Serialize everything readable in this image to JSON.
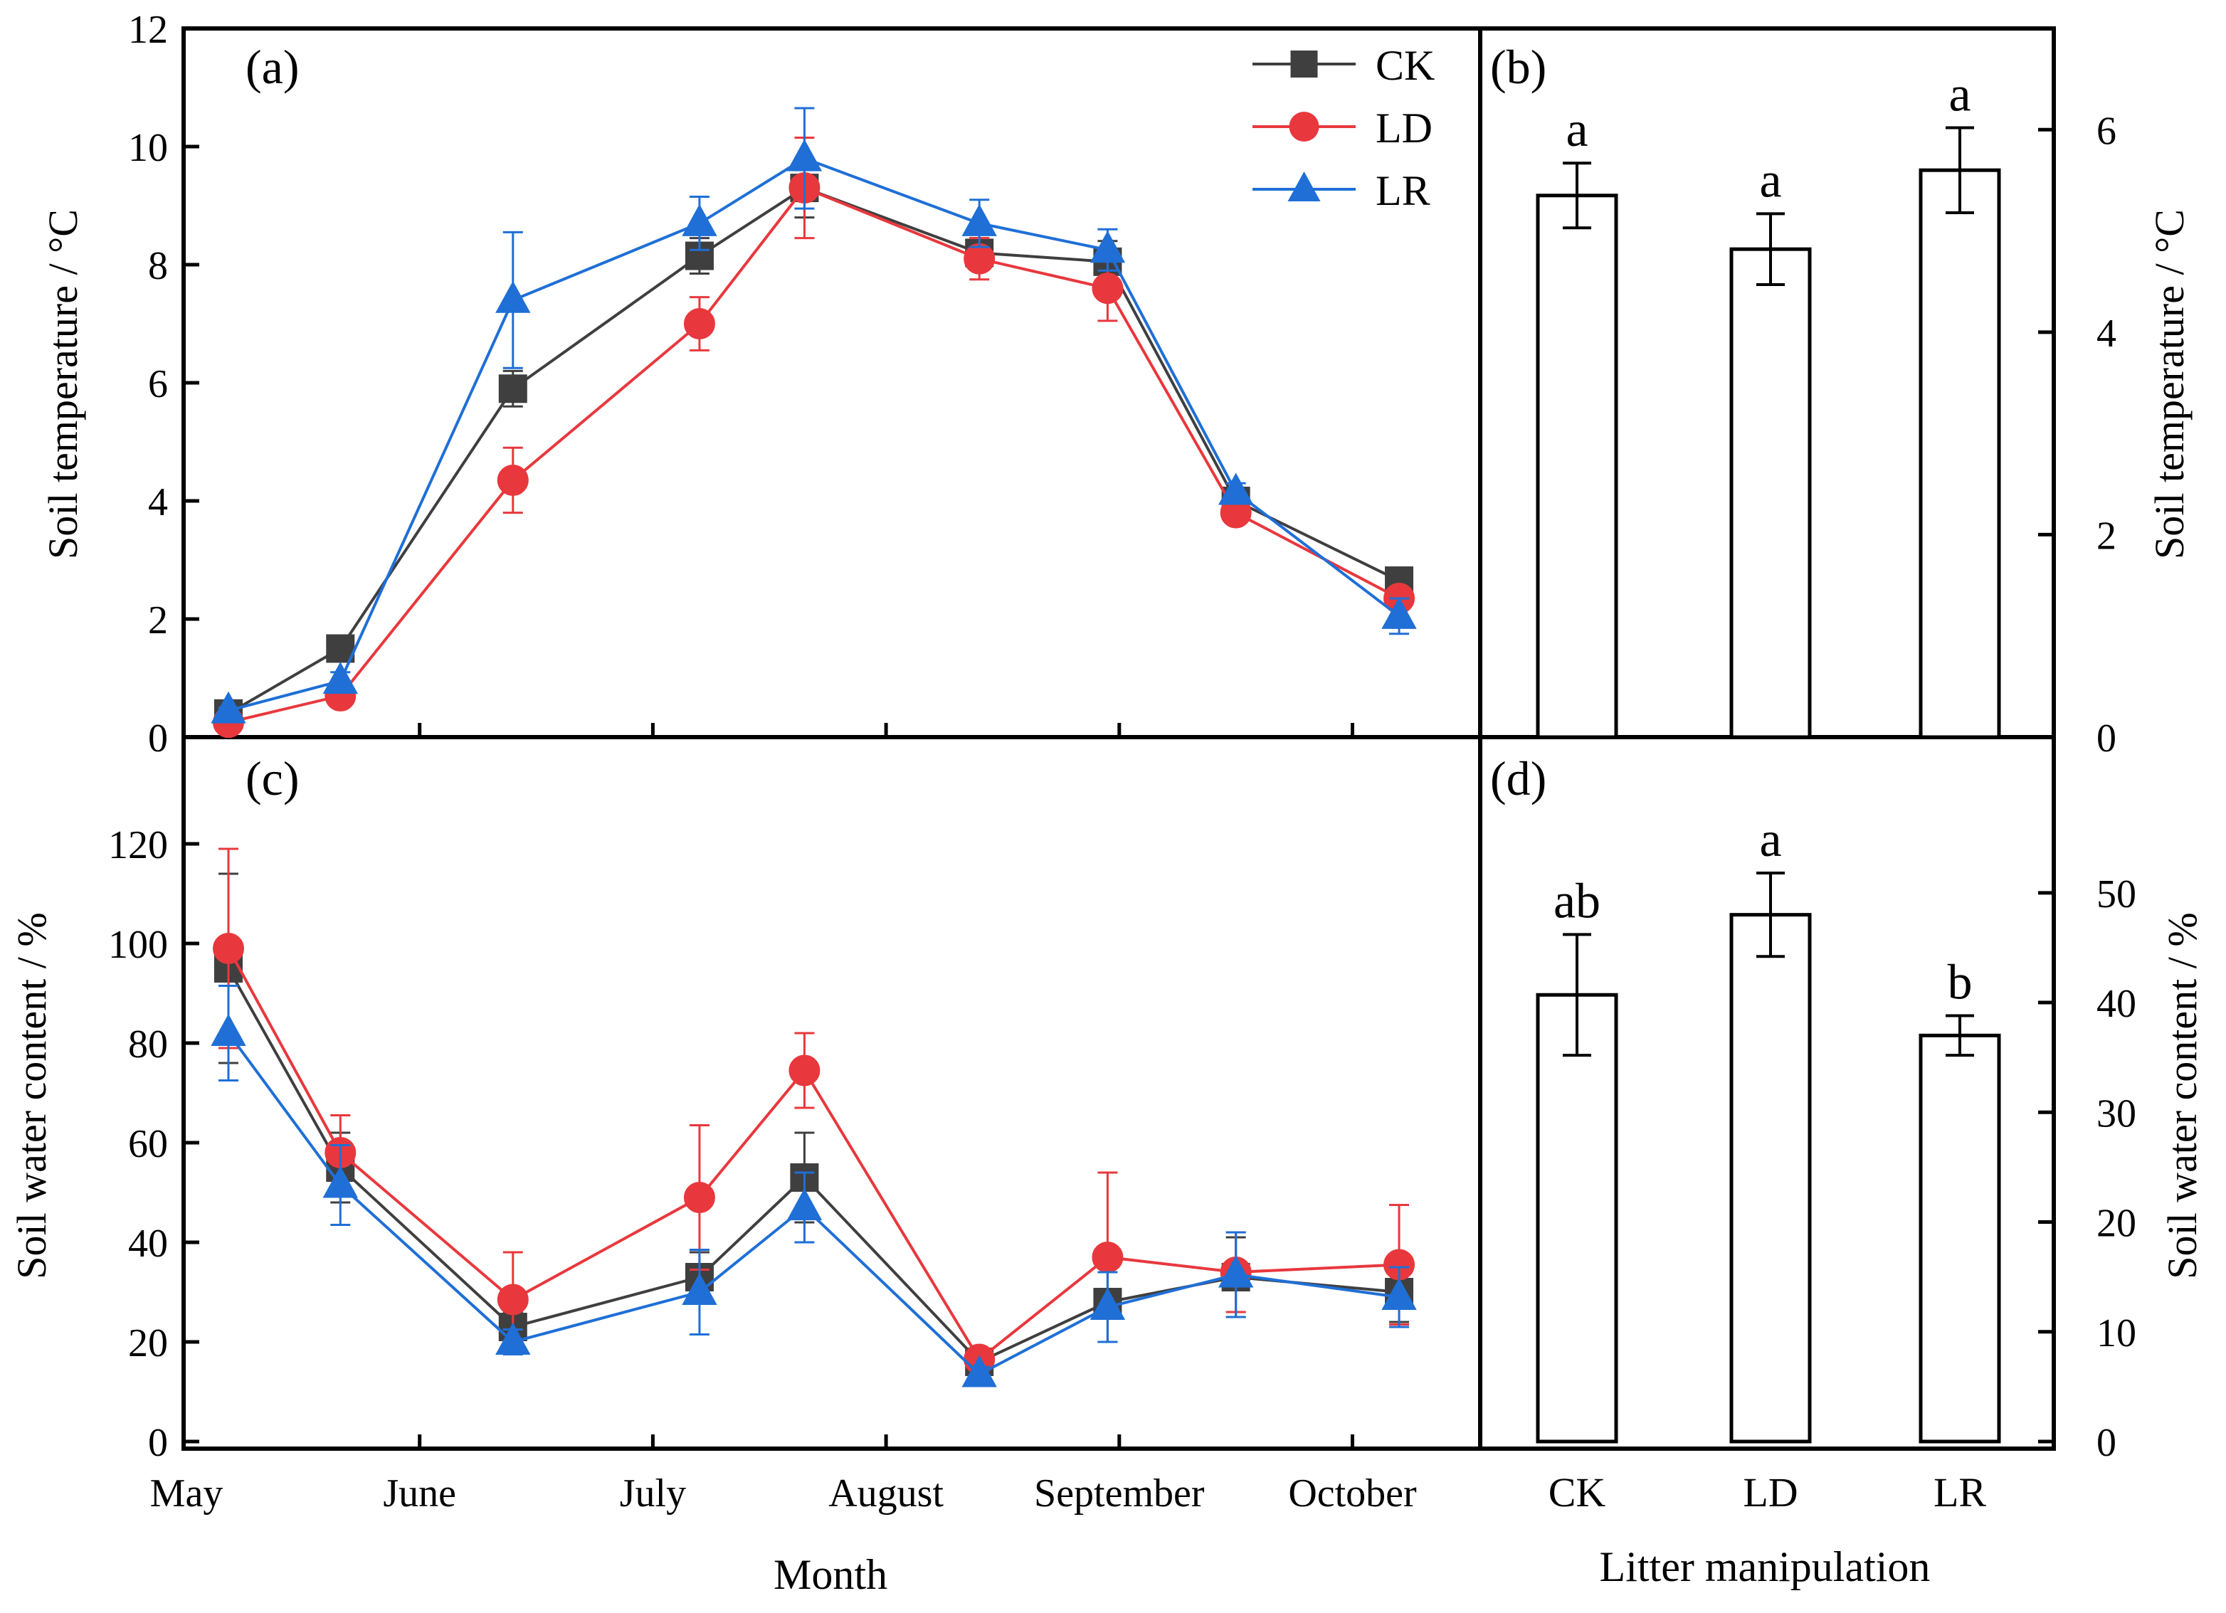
{
  "colors": {
    "CK": "#3f3f3f",
    "LD": "#e8383d",
    "LR": "#1f6fd6",
    "axis": "#000000",
    "bar_fill": "#ffffff"
  },
  "markers": {
    "CK": "square",
    "LD": "circle",
    "LR": "triangle"
  },
  "xlabel_time": "Month",
  "xlabel_bar": "Litter manipulation",
  "chart_data": [
    {
      "panel": "(a)",
      "type": "line",
      "xlabel": "Month",
      "ylabel": "Soil temperature / °C",
      "ylim": [
        0,
        12
      ],
      "yticks": [
        0,
        2,
        4,
        6,
        8,
        10,
        12
      ],
      "month_ticks": [
        "May",
        "June",
        "July",
        "August",
        "September",
        "October"
      ],
      "x_month_index": [
        0.18,
        0.66,
        1.4,
        2.2,
        2.65,
        3.4,
        3.95,
        4.5,
        5.2
      ],
      "legend": [
        "CK",
        "LD",
        "LR"
      ],
      "legend_position": "top-right",
      "series": [
        {
          "name": "CK",
          "values": [
            0.4,
            1.5,
            5.9,
            8.15,
            9.3,
            8.2,
            8.05,
            4.0,
            2.65
          ],
          "errors": [
            0.05,
            0.1,
            0.3,
            0.3,
            0.5,
            0.25,
            0.35,
            0.15,
            0.1
          ]
        },
        {
          "name": "LD",
          "values": [
            0.25,
            0.7,
            4.35,
            7.0,
            9.3,
            8.1,
            7.6,
            3.8,
            2.35
          ],
          "errors": [
            0.05,
            0.1,
            0.55,
            0.45,
            0.85,
            0.35,
            0.55,
            0.15,
            0.15
          ]
        },
        {
          "name": "LR",
          "values": [
            0.45,
            0.95,
            7.4,
            8.7,
            9.8,
            8.7,
            8.25,
            4.15,
            2.05
          ],
          "errors": [
            0.05,
            0.15,
            1.15,
            0.45,
            0.85,
            0.4,
            0.35,
            0.15,
            0.3
          ]
        }
      ]
    },
    {
      "panel": "(b)",
      "type": "bar",
      "ylabel": "Soil temperature / °C",
      "ylim": [
        0,
        7
      ],
      "yticks": [
        0,
        2,
        4,
        6
      ],
      "categories": [
        "CK",
        "LD",
        "LR"
      ],
      "values": [
        5.35,
        4.82,
        5.6
      ],
      "errors": [
        0.32,
        0.35,
        0.42
      ],
      "letters": [
        "a",
        "a",
        "a"
      ]
    },
    {
      "panel": "(c)",
      "type": "line",
      "xlabel": "Month",
      "ylabel": "Soil water content / %",
      "ylim": [
        0,
        130
      ],
      "yticks": [
        0,
        20,
        40,
        60,
        80,
        100,
        120
      ],
      "month_ticks": [
        "May",
        "June",
        "July",
        "August",
        "September",
        "October"
      ],
      "x_month_index": [
        0.18,
        0.66,
        1.4,
        2.2,
        2.65,
        3.4,
        3.95,
        4.5,
        5.2
      ],
      "series": [
        {
          "name": "CK",
          "values": [
            95,
            55,
            23,
            33,
            53,
            16,
            28,
            33,
            30
          ],
          "errors": [
            19,
            7,
            3,
            5,
            9,
            2,
            8,
            8,
            6
          ]
        },
        {
          "name": "LD",
          "values": [
            99,
            58,
            28.5,
            49,
            74.5,
            16.5,
            37,
            34,
            35.5
          ],
          "errors": [
            20,
            7.5,
            9.5,
            14.5,
            7.5,
            1.5,
            17,
            8,
            12
          ]
        },
        {
          "name": "LR",
          "values": [
            82,
            51.5,
            20,
            30,
            47,
            13.5,
            27,
            33.5,
            29
          ],
          "errors": [
            9.5,
            8,
            2.5,
            8.5,
            7,
            1.5,
            7,
            8.5,
            6
          ]
        }
      ]
    },
    {
      "panel": "(d)",
      "type": "bar",
      "ylabel": "Soil water content / %",
      "ylim": [
        0,
        59
      ],
      "yticks": [
        0,
        10,
        20,
        30,
        40,
        50
      ],
      "categories": [
        "CK",
        "LD",
        "LR"
      ],
      "values": [
        40.7,
        48.0,
        37.0
      ],
      "errors": [
        5.5,
        3.8,
        1.8
      ],
      "letters": [
        "ab",
        "a",
        "b"
      ]
    }
  ]
}
